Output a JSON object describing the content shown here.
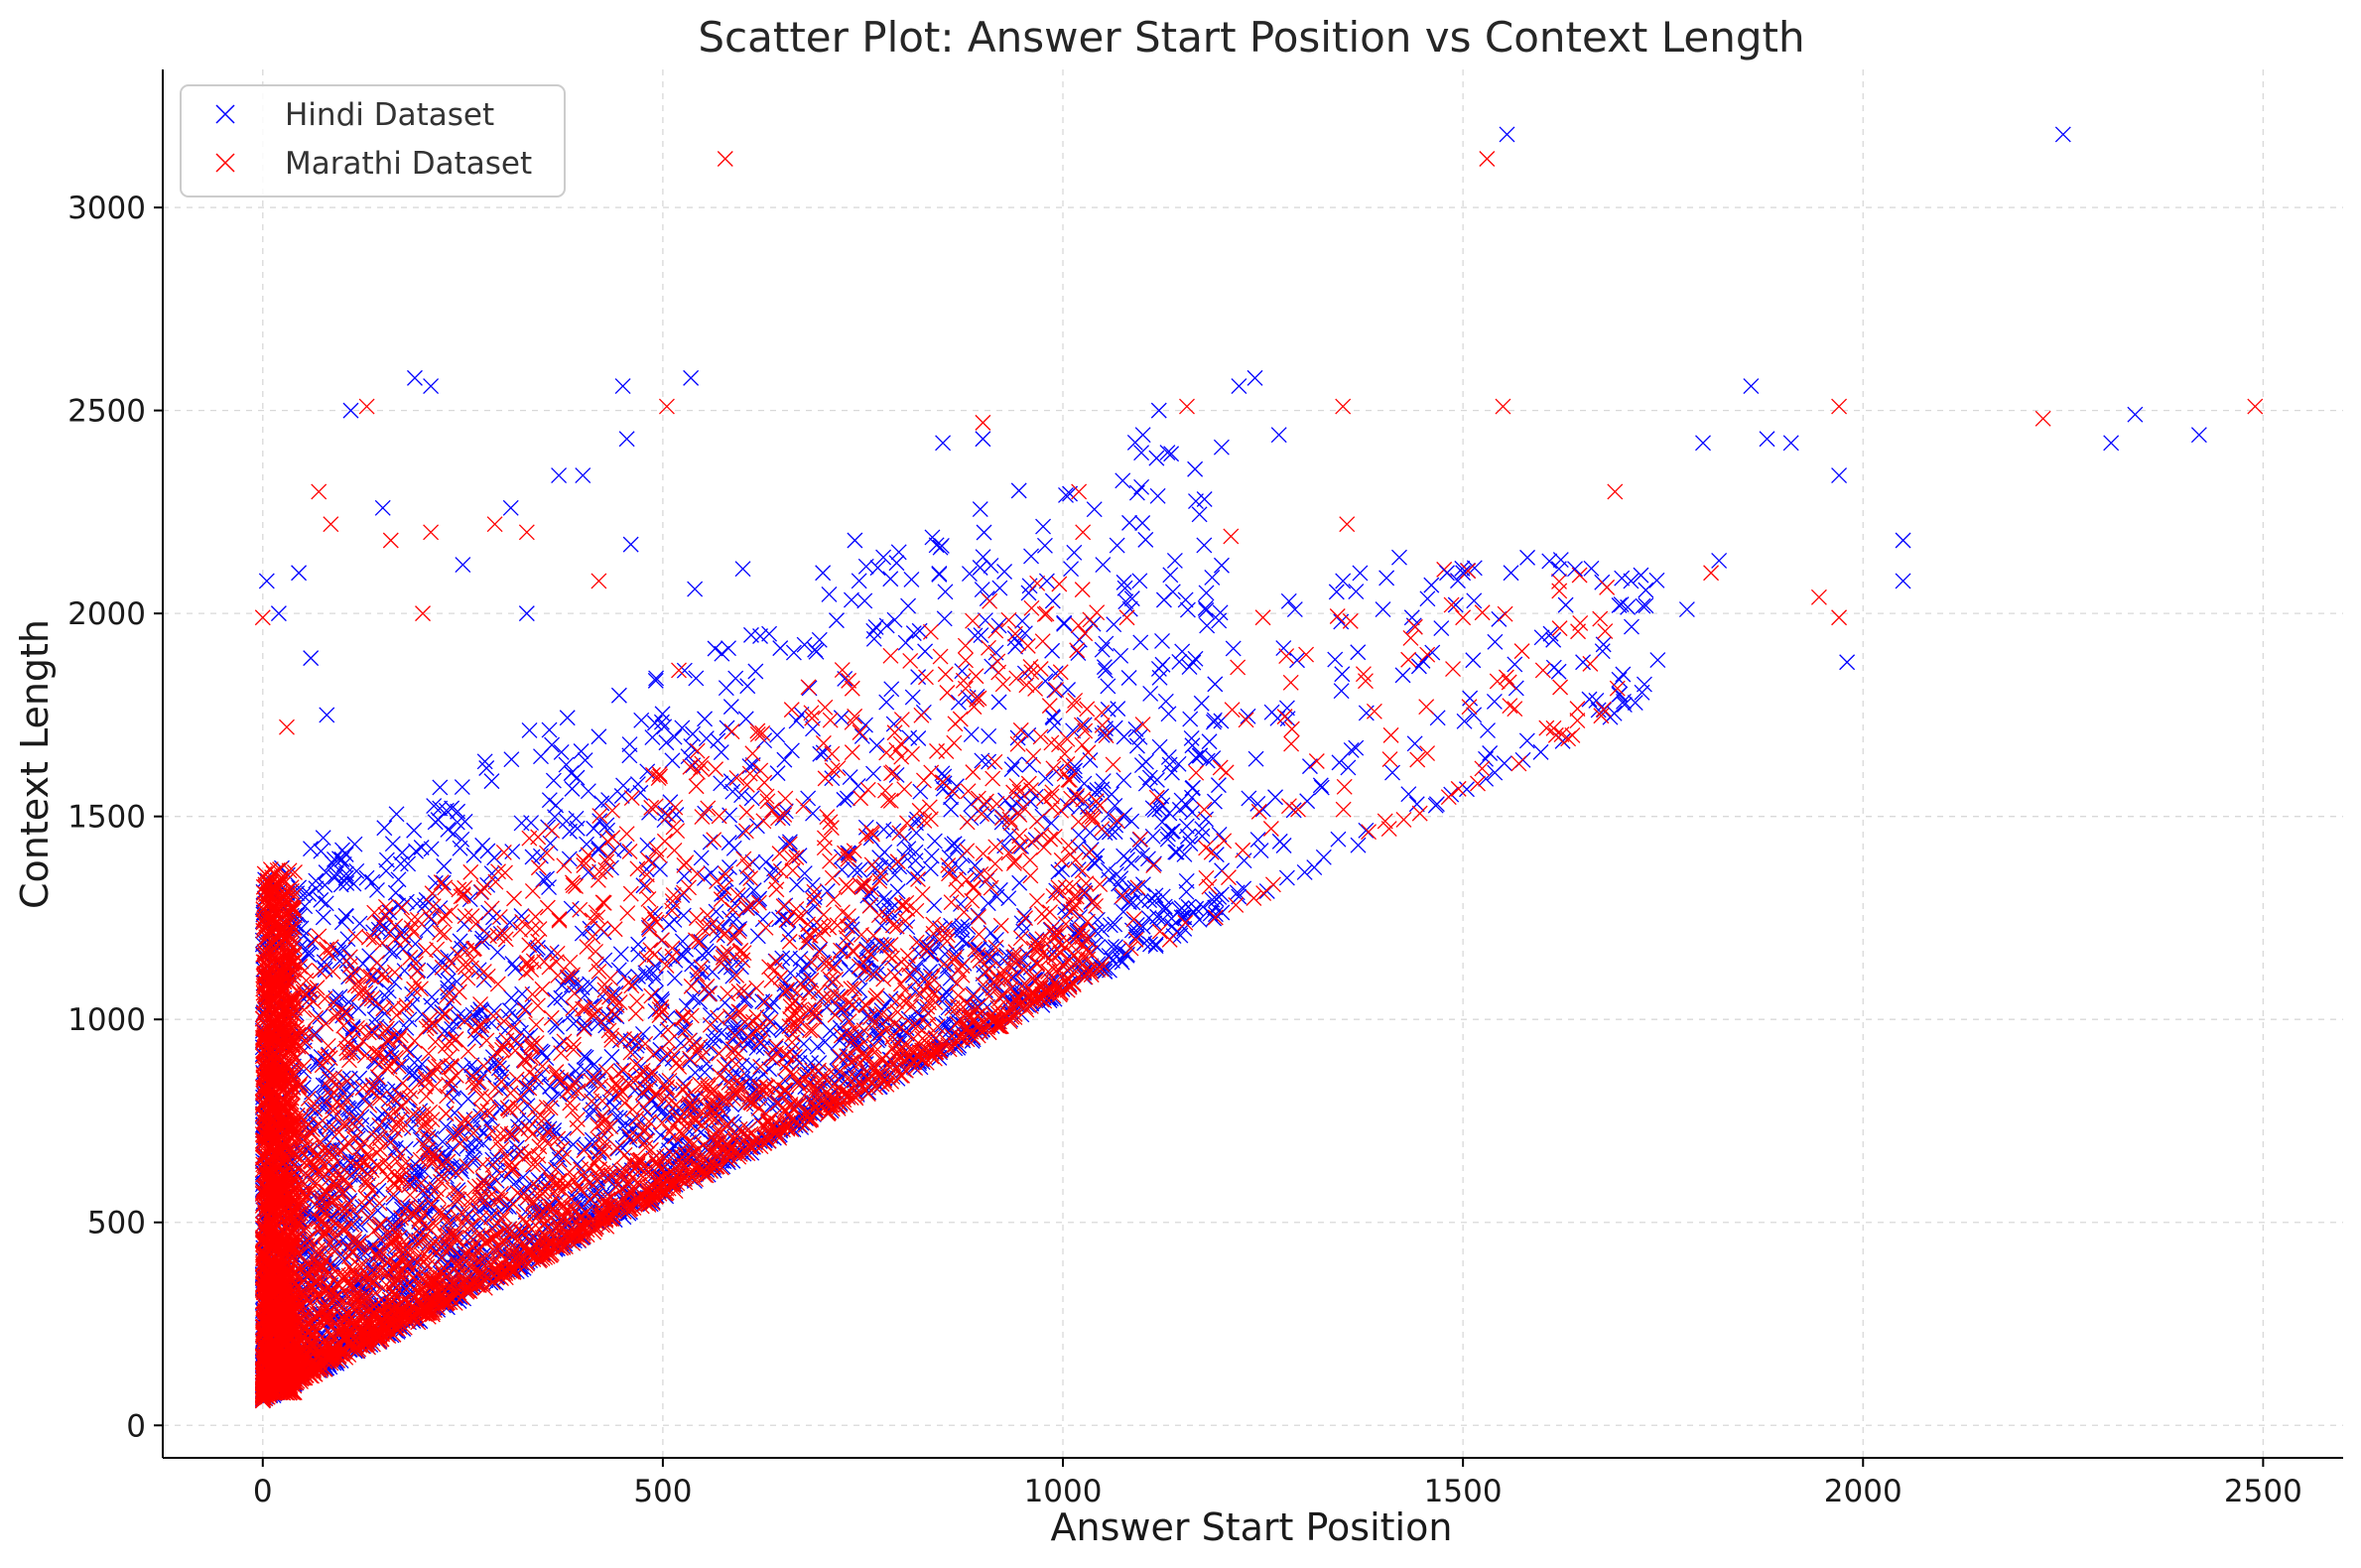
{
  "chart_data": {
    "type": "scatter",
    "title": "Scatter Plot: Answer Start Position vs Context Length",
    "xlabel": "Answer Start Position",
    "ylabel": "Context Length",
    "xlim": [
      -125,
      2600
    ],
    "ylim": [
      -80,
      3340
    ],
    "xticks": [
      0,
      500,
      1000,
      1500,
      2000,
      2500
    ],
    "yticks": [
      0,
      500,
      1000,
      1500,
      2000,
      2500,
      3000
    ],
    "grid": true,
    "legend": "top-left",
    "marker": "x",
    "series": [
      {
        "name": "Hindi Dataset",
        "color": "#0000ff",
        "points": [
          [
            5,
            2080
          ],
          [
            20,
            2000
          ],
          [
            45,
            2100
          ],
          [
            60,
            1890
          ],
          [
            80,
            1750
          ],
          [
            110,
            2500
          ],
          [
            150,
            2260
          ],
          [
            190,
            2580
          ],
          [
            210,
            2560
          ],
          [
            250,
            2120
          ],
          [
            310,
            2260
          ],
          [
            330,
            2000
          ],
          [
            370,
            2340
          ],
          [
            400,
            2340
          ],
          [
            450,
            2560
          ],
          [
            455,
            2430
          ],
          [
            460,
            2170
          ],
          [
            535,
            2580
          ],
          [
            540,
            2060
          ],
          [
            600,
            2110
          ],
          [
            700,
            2100
          ],
          [
            740,
            2180
          ],
          [
            780,
            1970
          ],
          [
            850,
            2420
          ],
          [
            900,
            2430
          ],
          [
            920,
            1970
          ],
          [
            980,
            2080
          ],
          [
            1010,
            2110
          ],
          [
            1050,
            2120
          ],
          [
            1100,
            2440
          ],
          [
            1120,
            2500
          ],
          [
            1140,
            2130
          ],
          [
            1180,
            1970
          ],
          [
            1220,
            2560
          ],
          [
            1240,
            2580
          ],
          [
            1270,
            2440
          ],
          [
            1290,
            2010
          ],
          [
            1350,
            2080
          ],
          [
            1400,
            2010
          ],
          [
            1480,
            2100
          ],
          [
            1500,
            2100
          ],
          [
            1540,
            1930
          ],
          [
            1555,
            3180
          ],
          [
            1560,
            2100
          ],
          [
            1620,
            2110
          ],
          [
            1640,
            2110
          ],
          [
            1700,
            1850
          ],
          [
            1710,
            2080
          ],
          [
            1780,
            2010
          ],
          [
            1800,
            2420
          ],
          [
            1820,
            2130
          ],
          [
            1860,
            2560
          ],
          [
            1880,
            2430
          ],
          [
            1910,
            2420
          ],
          [
            1970,
            2340
          ],
          [
            2050,
            2180
          ],
          [
            2050,
            2080
          ],
          [
            2250,
            3180
          ],
          [
            2310,
            2420
          ],
          [
            2340,
            2490
          ],
          [
            2420,
            2440
          ],
          [
            1980,
            1880
          ],
          [
            1650,
            1880
          ]
        ]
      },
      {
        "name": "Marathi Dataset",
        "color": "#ff0000",
        "points": [
          [
            0,
            1990
          ],
          [
            30,
            1720
          ],
          [
            70,
            2300
          ],
          [
            85,
            2220
          ],
          [
            130,
            2510
          ],
          [
            160,
            2180
          ],
          [
            200,
            2000
          ],
          [
            210,
            2200
          ],
          [
            290,
            2220
          ],
          [
            330,
            2200
          ],
          [
            420,
            2080
          ],
          [
            505,
            2510
          ],
          [
            520,
            1860
          ],
          [
            578,
            3120
          ],
          [
            900,
            2470
          ],
          [
            1020,
            2300
          ],
          [
            1025,
            2200
          ],
          [
            1155,
            2510
          ],
          [
            1210,
            2190
          ],
          [
            1250,
            1990
          ],
          [
            1350,
            2510
          ],
          [
            1355,
            2220
          ],
          [
            1500,
            1990
          ],
          [
            1530,
            3120
          ],
          [
            1550,
            2510
          ],
          [
            1690,
            2300
          ],
          [
            1810,
            2100
          ],
          [
            1945,
            2040
          ],
          [
            1970,
            2510
          ],
          [
            1970,
            1990
          ],
          [
            2225,
            2480
          ],
          [
            2490,
            2510
          ],
          [
            1600,
            1860
          ],
          [
            1410,
            1700
          ],
          [
            1080,
            1990
          ]
        ]
      }
    ]
  }
}
